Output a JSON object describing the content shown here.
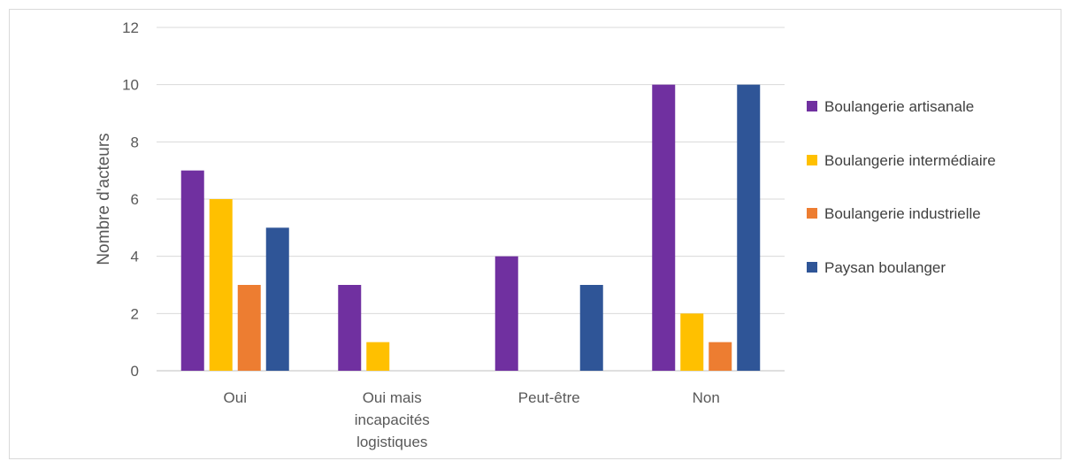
{
  "chart_data": {
    "type": "bar",
    "title": "",
    "xlabel": "",
    "ylabel": "Nombre d'acteurs",
    "ylim": [
      0,
      12
    ],
    "yticks": [
      0,
      2,
      4,
      6,
      8,
      10,
      12
    ],
    "grid": true,
    "legend_position": "right",
    "categories": [
      [
        "Oui"
      ],
      [
        "Oui mais",
        "incapacités",
        "logistiques"
      ],
      [
        "Peut-être"
      ],
      [
        "Non"
      ]
    ],
    "series": [
      {
        "name": "Boulangerie artisanale",
        "color": "#7030a0",
        "values": [
          7,
          3,
          4,
          10
        ]
      },
      {
        "name": "Boulangerie intermédiaire",
        "color": "#ffc000",
        "values": [
          6,
          1,
          0,
          2
        ]
      },
      {
        "name": "Boulangerie industrielle",
        "color": "#ed7d31",
        "values": [
          3,
          0,
          0,
          1
        ]
      },
      {
        "name": "Paysan boulanger",
        "color": "#2f5597",
        "values": [
          5,
          0,
          3,
          10
        ]
      }
    ]
  }
}
